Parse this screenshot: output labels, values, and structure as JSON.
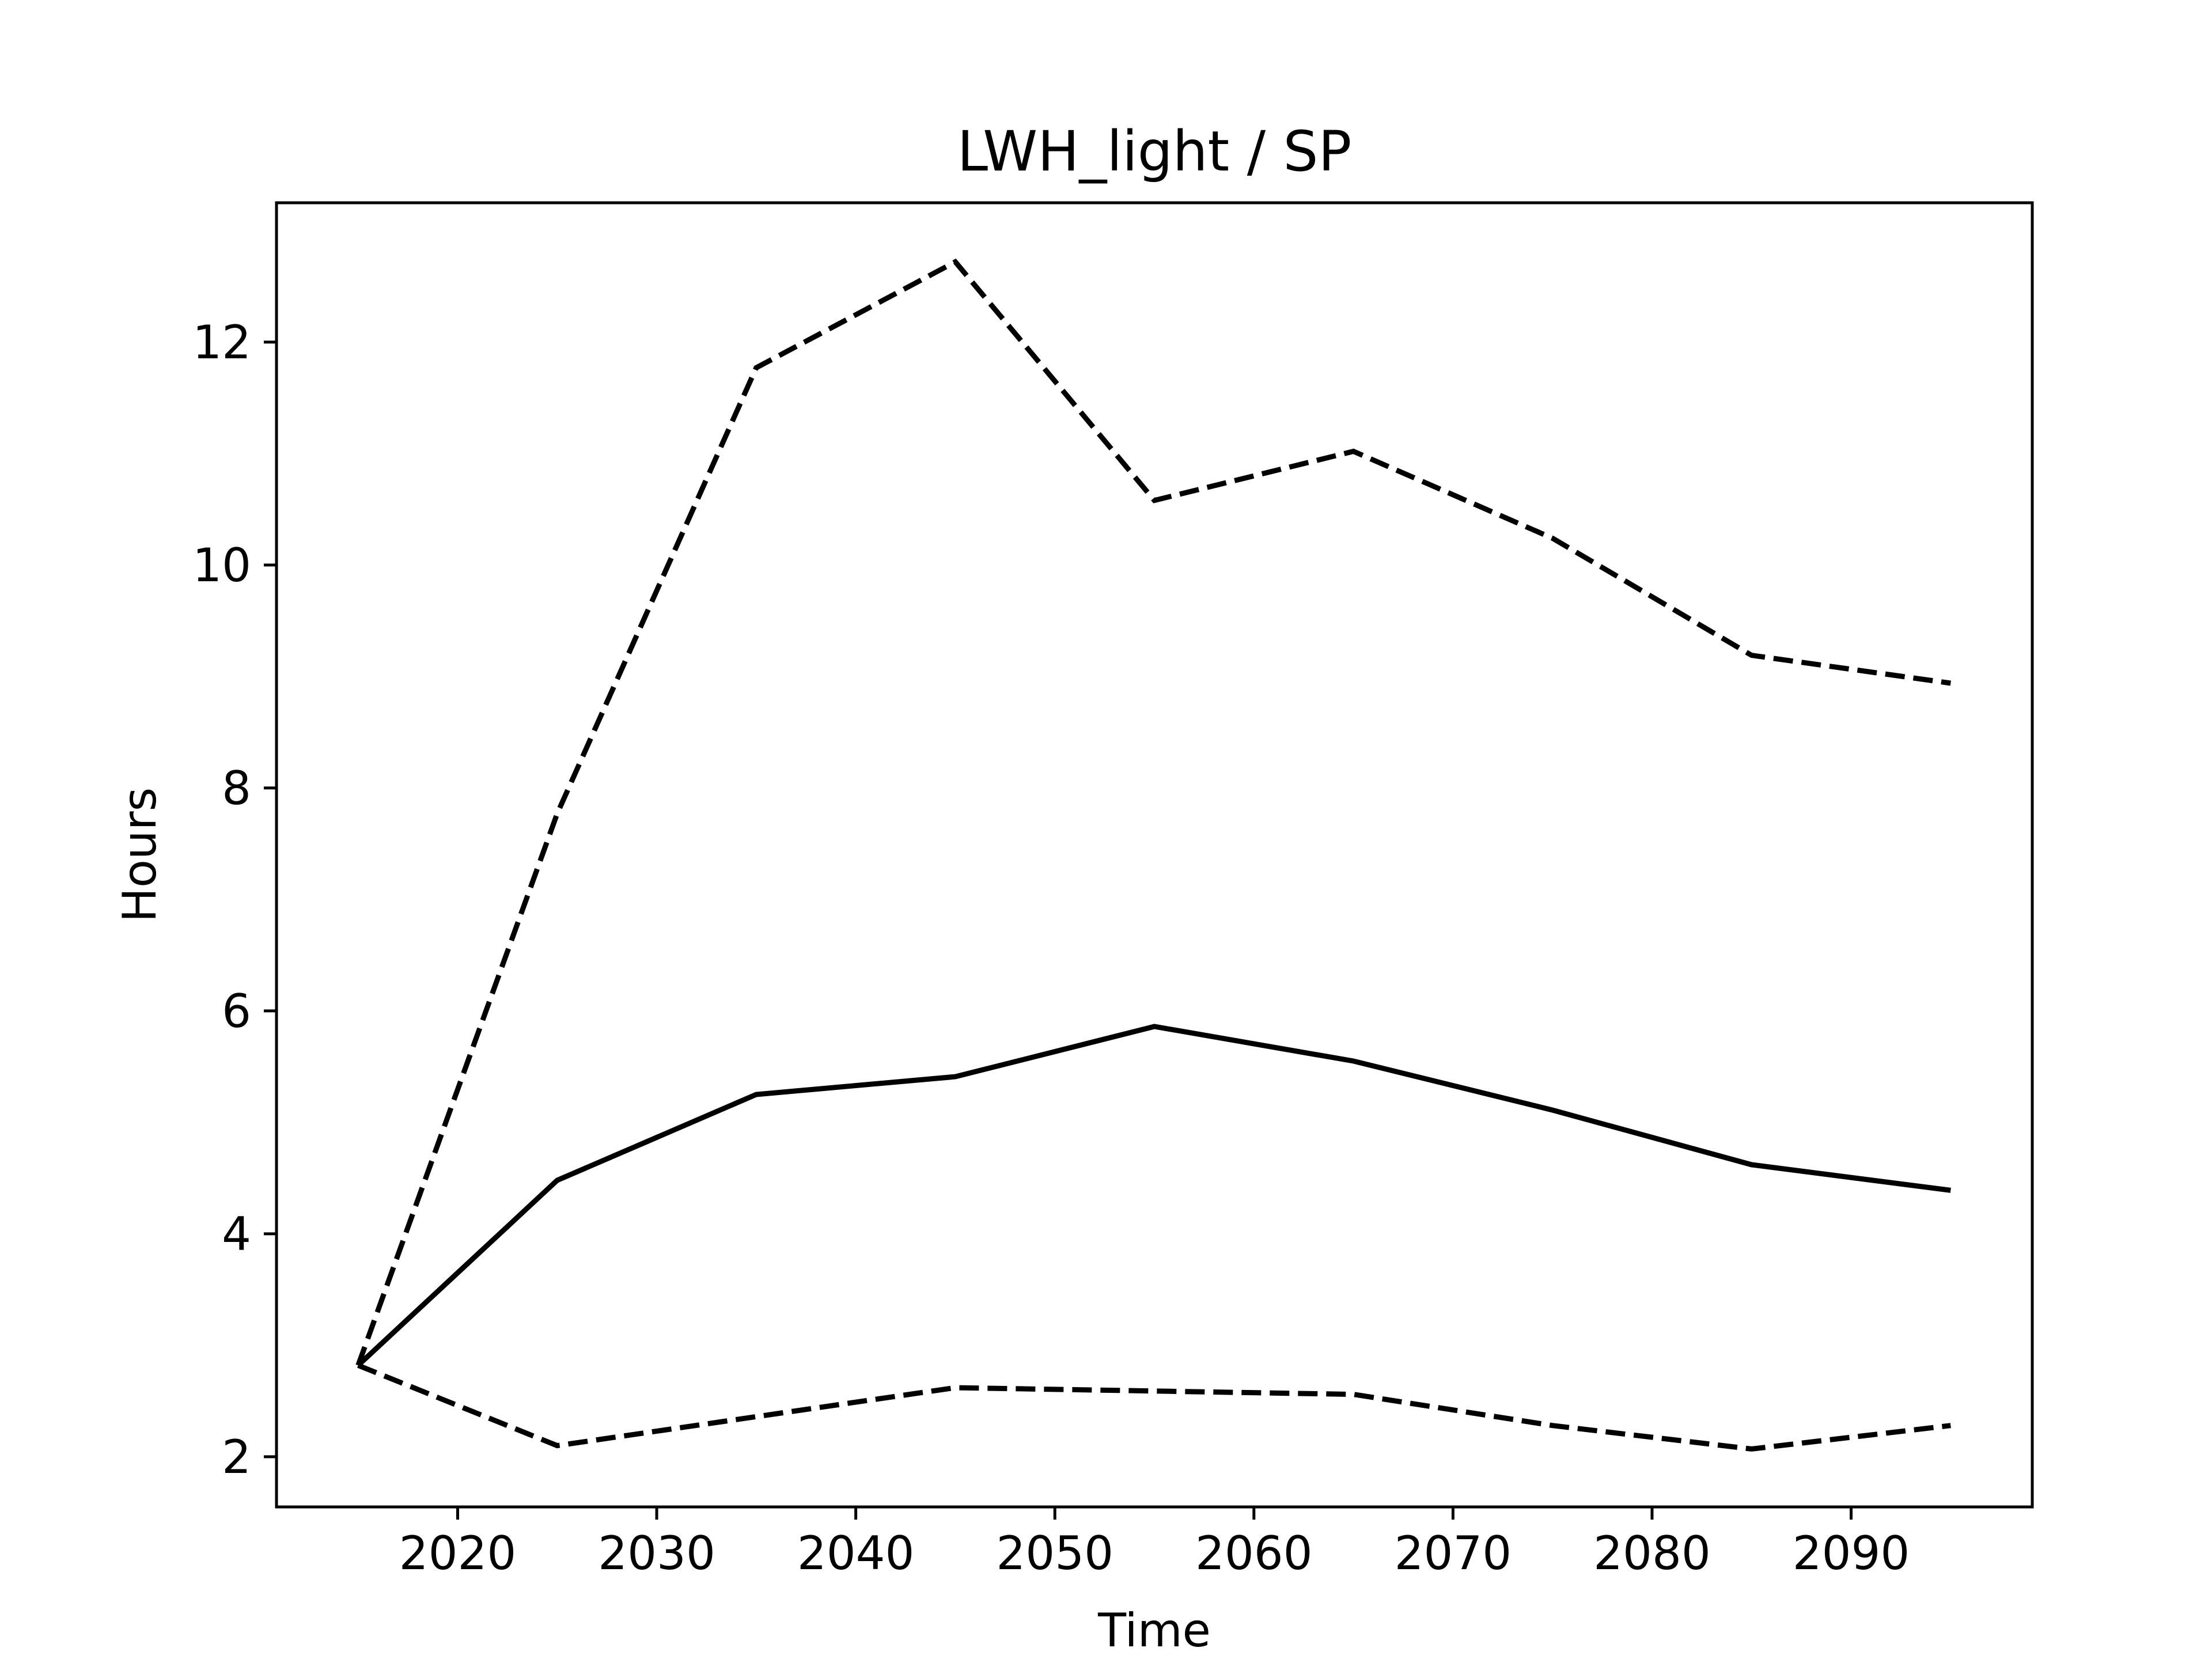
{
  "chart_data": {
    "type": "line",
    "title": "LWH_light / SP",
    "xlabel": "Time",
    "ylabel": "Hours",
    "x": [
      2015,
      2025,
      2035,
      2045,
      2055,
      2065,
      2075,
      2085,
      2095
    ],
    "xlim": [
      2010.9,
      2099.1
    ],
    "ylim": [
      1.55,
      13.25
    ],
    "xticks": [
      2020,
      2030,
      2040,
      2050,
      2060,
      2070,
      2080,
      2090
    ],
    "yticks": [
      2,
      4,
      6,
      8,
      10,
      12
    ],
    "grid": false,
    "series": [
      {
        "style": "solid",
        "color": "#000000",
        "values": [
          2.82,
          4.48,
          5.25,
          5.41,
          5.86,
          5.55,
          5.11,
          4.62,
          4.39
        ]
      },
      {
        "style": "dashed",
        "color": "#000000",
        "values": [
          2.82,
          7.77,
          11.77,
          12.72,
          10.58,
          11.02,
          10.24,
          9.19,
          8.94
        ]
      },
      {
        "style": "dashed",
        "color": "#000000",
        "values": [
          2.82,
          2.1,
          2.36,
          2.62,
          2.59,
          2.56,
          2.28,
          2.07,
          2.28
        ]
      }
    ]
  }
}
